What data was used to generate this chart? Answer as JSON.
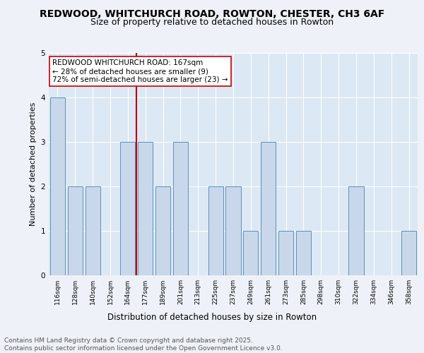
{
  "title1": "REDWOOD, WHITCHURCH ROAD, ROWTON, CHESTER, CH3 6AF",
  "title2": "Size of property relative to detached houses in Rowton",
  "xlabel": "Distribution of detached houses by size in Rowton",
  "ylabel": "Number of detached properties",
  "categories": [
    "116sqm",
    "128sqm",
    "140sqm",
    "152sqm",
    "164sqm",
    "177sqm",
    "189sqm",
    "201sqm",
    "213sqm",
    "225sqm",
    "237sqm",
    "249sqm",
    "261sqm",
    "273sqm",
    "285sqm",
    "298sqm",
    "310sqm",
    "322sqm",
    "334sqm",
    "346sqm",
    "358sqm"
  ],
  "values": [
    4,
    2,
    2,
    0,
    3,
    3,
    2,
    3,
    0,
    2,
    2,
    1,
    3,
    1,
    1,
    0,
    0,
    2,
    0,
    0,
    1
  ],
  "highlight_index": 4,
  "bar_color": "#c8d8ea",
  "bar_edge_color": "#6090b8",
  "highlight_line_color": "#bb0000",
  "annotation_box_color": "#ffffff",
  "annotation_box_edge_color": "#cc0000",
  "annotation_text": "REDWOOD WHITCHURCH ROAD: 167sqm\n← 28% of detached houses are smaller (9)\n72% of semi-detached houses are larger (23) →",
  "annotation_fontsize": 7.5,
  "footnote": "Contains HM Land Registry data © Crown copyright and database right 2025.\nContains public sector information licensed under the Open Government Licence v3.0.",
  "ylim": [
    0,
    5
  ],
  "yticks": [
    0,
    1,
    2,
    3,
    4,
    5
  ],
  "bg_color": "#eef2f8",
  "plot_bg_color": "#dce8f4",
  "title1_fontsize": 10,
  "title2_fontsize": 9,
  "xlabel_fontsize": 8.5,
  "ylabel_fontsize": 8,
  "tick_fontsize": 6.5,
  "footnote_fontsize": 6.5
}
